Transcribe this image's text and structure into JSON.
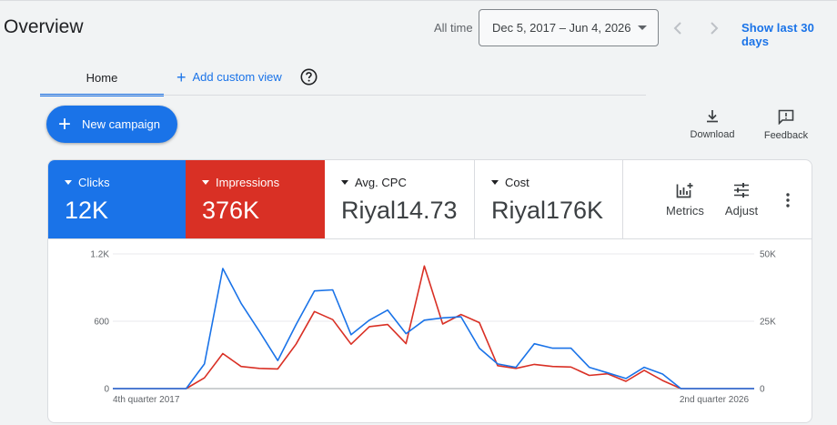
{
  "header": {
    "title": "Overview",
    "range_label": "All time",
    "date_range": "Dec 5, 2017 – Jun 4, 2026",
    "show_last": "Show last 30 days"
  },
  "tabs": [
    {
      "label": "Home",
      "active": true
    }
  ],
  "add_view": {
    "label": "Add custom view"
  },
  "new_campaign": {
    "label": "New campaign"
  },
  "tools": {
    "download": "Download",
    "feedback": "Feedback"
  },
  "metrics": [
    {
      "label": "Clicks",
      "value": "12K",
      "color": "#1a73e8",
      "selected": true
    },
    {
      "label": "Impressions",
      "value": "376K",
      "color": "#d93025",
      "selected": true
    },
    {
      "label": "Avg. CPC",
      "value": "Riyal14.73",
      "selected": false
    },
    {
      "label": "Cost",
      "value": "Riyal176K",
      "selected": false
    }
  ],
  "card_tools": {
    "metrics": "Metrics",
    "adjust": "Adjust"
  },
  "colors": {
    "accent": "#1a73e8",
    "clicks": "#1a73e8",
    "impressions": "#d93025"
  },
  "chart_data": {
    "type": "line",
    "x_start_label": "4th quarter 2017",
    "x_end_label": "2nd quarter 2026",
    "y_left": {
      "ticks": [
        "0",
        "600",
        "1.2K"
      ],
      "ylim": [
        0,
        1200
      ]
    },
    "y_right": {
      "ticks": [
        "0",
        "25K",
        "50K"
      ],
      "ylim": [
        0,
        50000
      ]
    },
    "grid": true,
    "series": [
      {
        "name": "Clicks",
        "axis": "left",
        "color": "#1a73e8",
        "values": [
          0,
          0,
          0,
          0,
          0,
          220,
          1070,
          760,
          510,
          250,
          570,
          870,
          880,
          480,
          610,
          700,
          490,
          610,
          630,
          640,
          360,
          220,
          190,
          400,
          360,
          360,
          190,
          140,
          90,
          190,
          130,
          0,
          0,
          0,
          0,
          0
        ]
      },
      {
        "name": "Impressions",
        "axis": "right",
        "color": "#d93025",
        "values": [
          0,
          0,
          0,
          0,
          0,
          4000,
          13000,
          8200,
          7500,
          7300,
          16500,
          28600,
          25600,
          16500,
          23000,
          23800,
          16700,
          45500,
          24000,
          27500,
          24500,
          8500,
          7500,
          9000,
          8200,
          8000,
          4900,
          5500,
          2700,
          6800,
          3000,
          0,
          0,
          0,
          0,
          0
        ]
      }
    ]
  }
}
